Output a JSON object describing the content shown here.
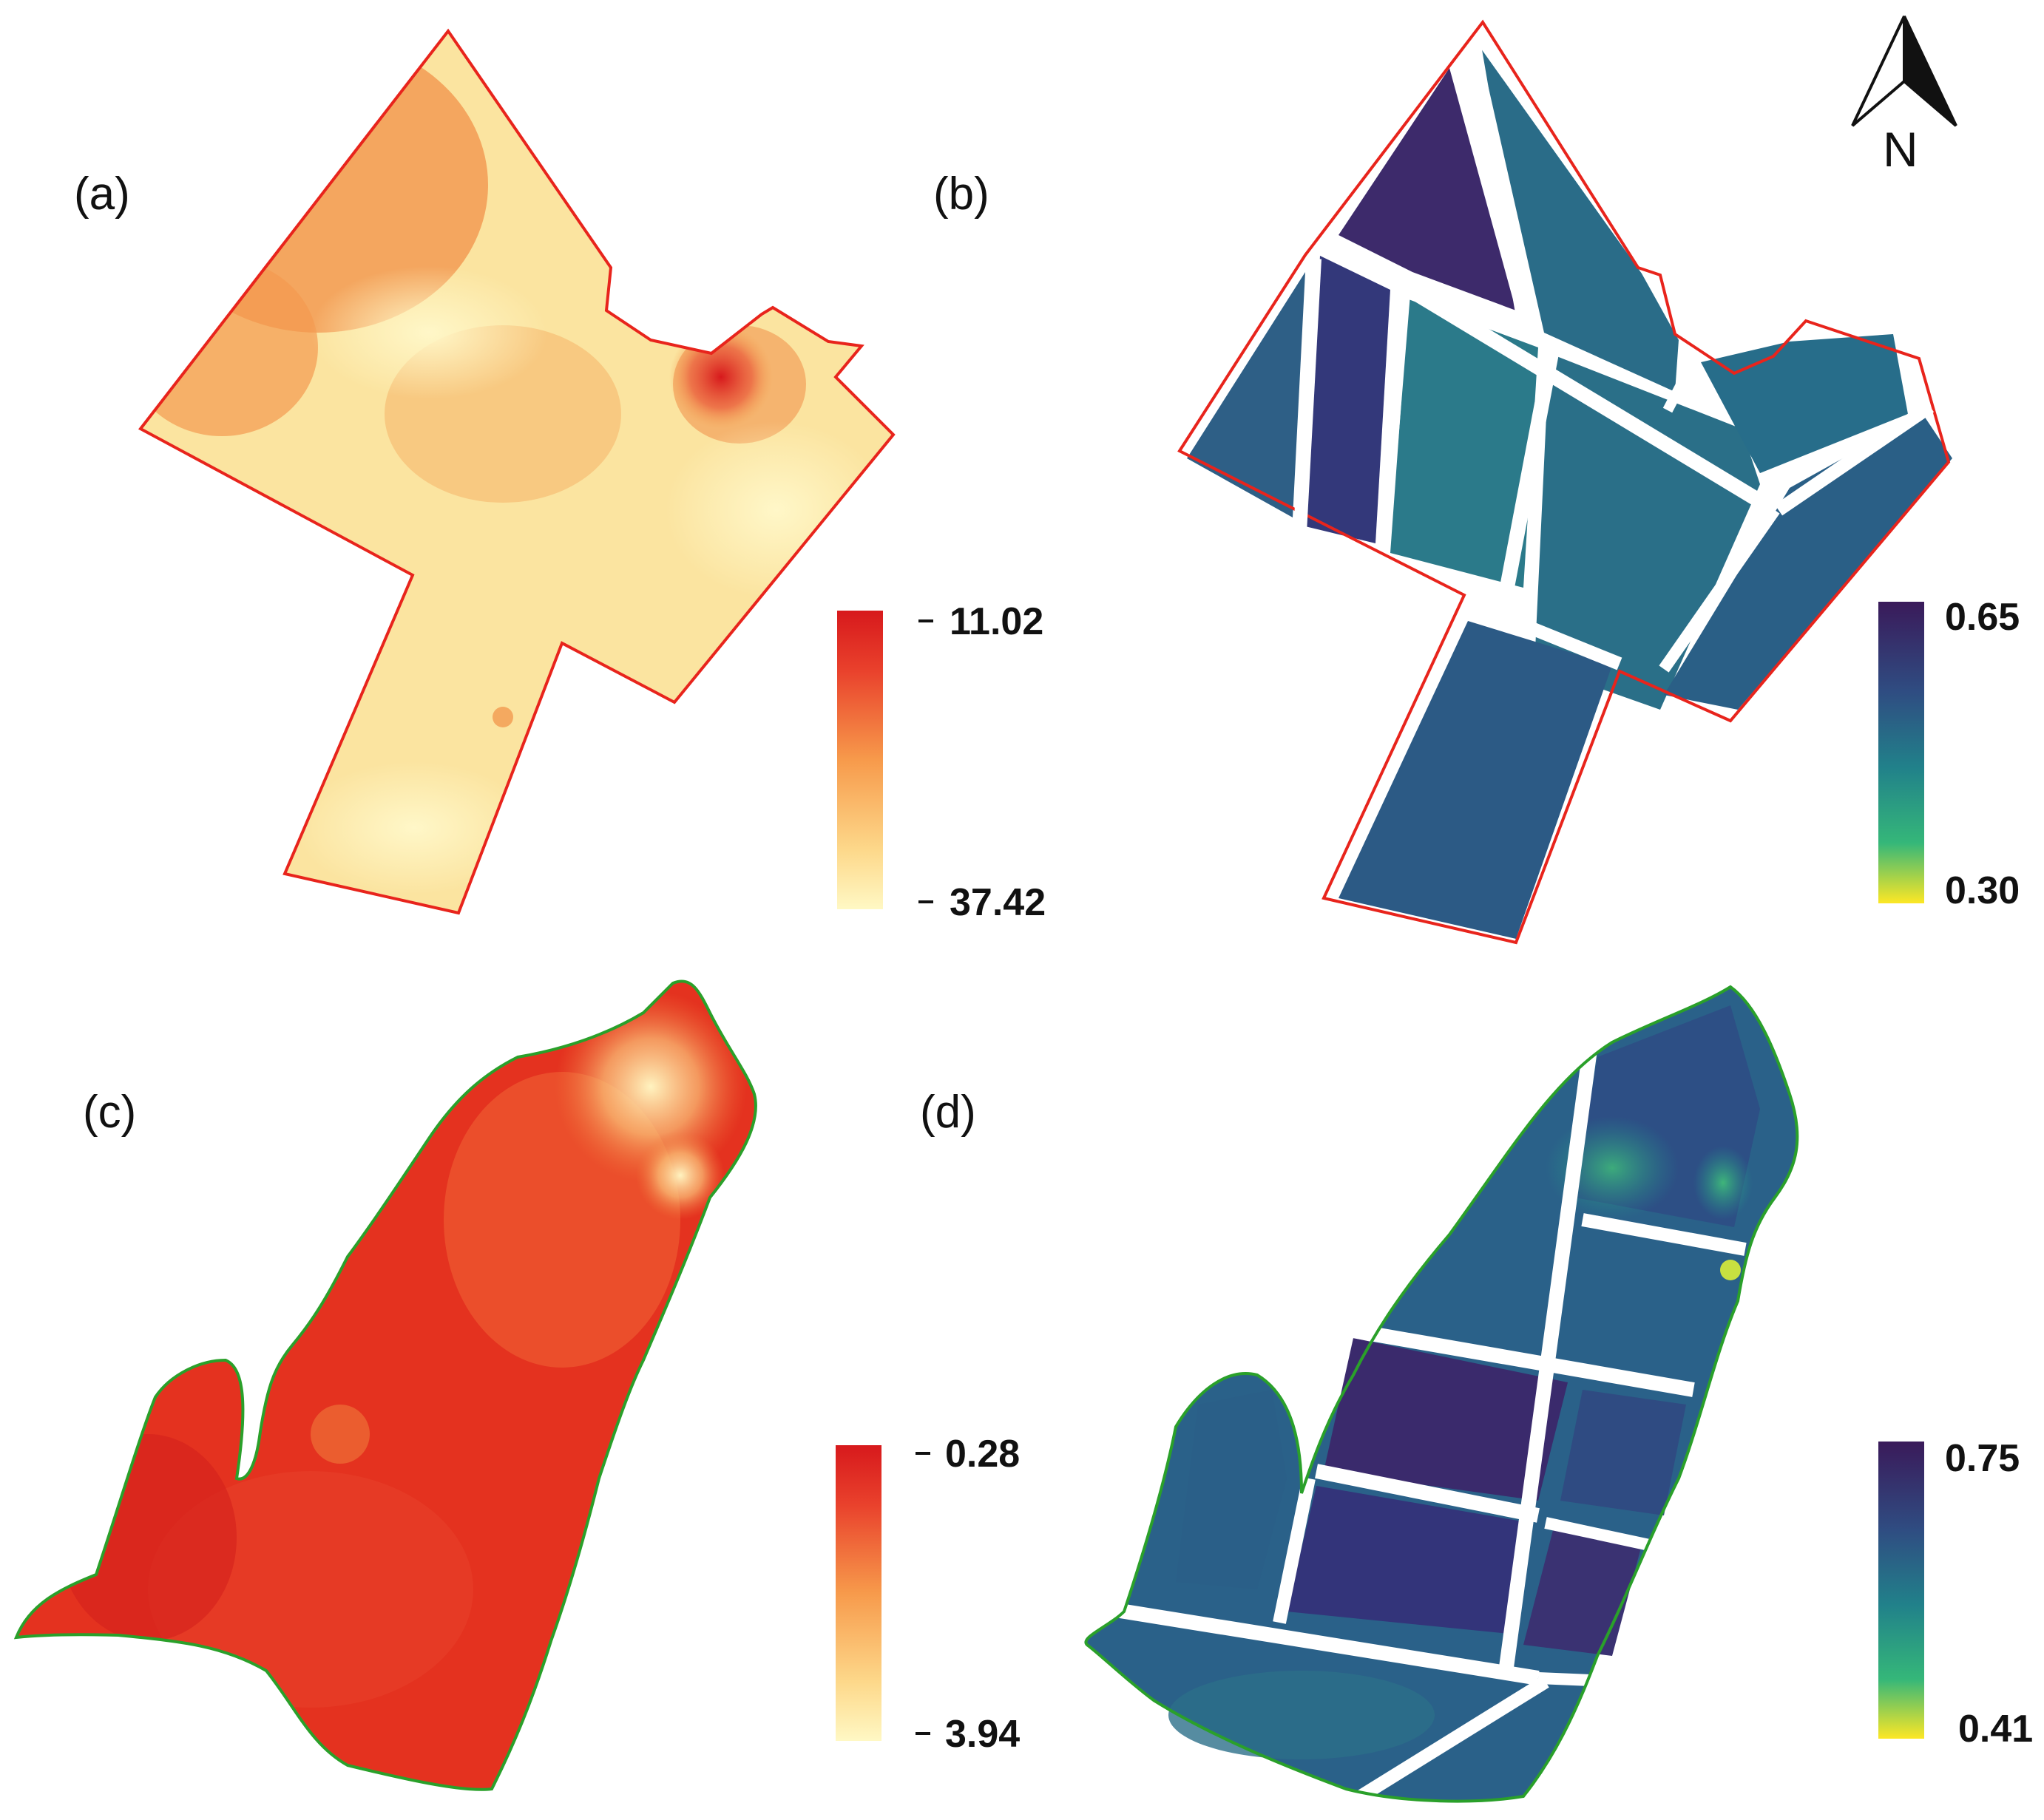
{
  "panels": {
    "a": {
      "label": "(a)",
      "legend": {
        "max": "11.02",
        "min": "37.42"
      },
      "colors": {
        "high": "#d7191c",
        "mid": "#f5a04a",
        "low": "#fff7bc",
        "boundary": "#e8241c"
      }
    },
    "b": {
      "label": "(b)",
      "legend": {
        "max": "0.65",
        "min": "0.30"
      },
      "colors": {
        "high": "#3b1b5e",
        "mid": "#21908c",
        "low": "#fde725",
        "boundary": "#e8241c"
      }
    },
    "c": {
      "label": "(c)",
      "legend": {
        "max": "0.28",
        "min": "3.94"
      },
      "colors": {
        "high": "#d7191c",
        "mid": "#f5a04a",
        "low": "#fff7bc",
        "boundary": "#2aa02a"
      }
    },
    "d": {
      "label": "(d)",
      "legend": {
        "max": "0.75",
        "min": "0.41"
      },
      "colors": {
        "high": "#3b1b5e",
        "mid": "#21908c",
        "low": "#fde725",
        "boundary": "#2aa02a"
      }
    }
  },
  "north_arrow": {
    "label": "N",
    "icon": "north-arrow-icon"
  }
}
